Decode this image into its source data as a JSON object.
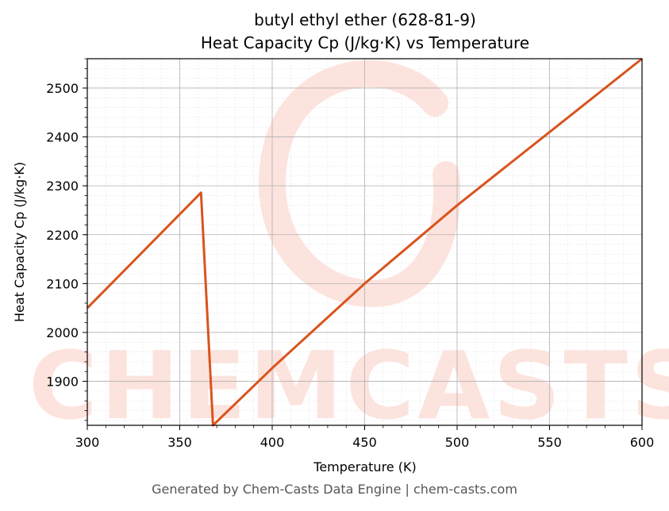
{
  "chart_data": {
    "type": "line",
    "title_line1": "butyl ethyl ether (628-81-9)",
    "title_line2": "Heat Capacity Cp (J/kg·K) vs Temperature",
    "xlabel": "Temperature (K)",
    "ylabel": "Heat Capacity Cp (J/kg·K)",
    "xlim": [
      300,
      600
    ],
    "ylim": [
      1810,
      2560
    ],
    "x_ticks": [
      300,
      350,
      400,
      450,
      500,
      550,
      600
    ],
    "y_ticks": [
      1900,
      2000,
      2100,
      2200,
      2300,
      2400,
      2500
    ],
    "grid": true,
    "series": [
      {
        "color": "#d9541e",
        "points": [
          [
            300,
            2050
          ],
          [
            361.5,
            2286
          ],
          [
            368,
            1810
          ],
          [
            400,
            1927
          ],
          [
            450,
            2100
          ],
          [
            500,
            2260
          ],
          [
            550,
            2410
          ],
          [
            600,
            2560
          ]
        ]
      }
    ]
  },
  "watermark": {
    "text": "CHEMCASTS",
    "color": "#fde0da"
  },
  "footer": "Generated by Chem-Casts Data Engine | chem-casts.com"
}
